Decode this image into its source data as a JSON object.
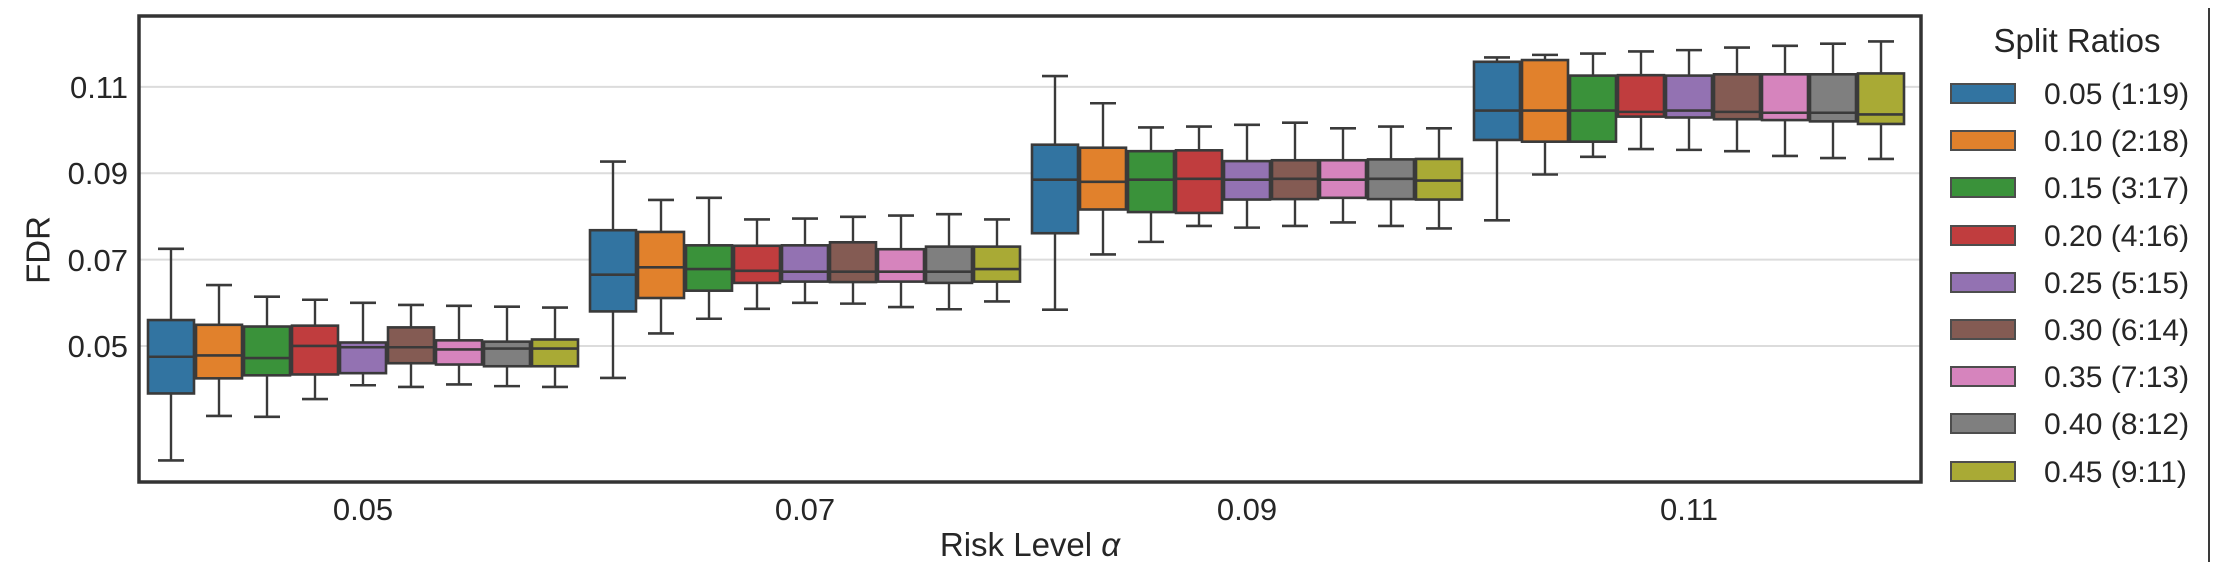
{
  "figure": {
    "background": "#ffffff",
    "border_color": "#333333",
    "grid_color": "#dcdcdc",
    "line_color": "#3a3a3a",
    "right_divider_line": true
  },
  "axes": {
    "xlabel_prefix": "Risk Level ",
    "xlabel_symbol": "α",
    "ylabel": "FDR",
    "x_tick_labels": [
      "0.05",
      "0.07",
      "0.09",
      "0.11"
    ],
    "y_tick_labels": [
      "0.05",
      "0.07",
      "0.09",
      "0.11"
    ]
  },
  "legend": {
    "title": "Split Ratios",
    "entries": [
      {
        "label": "0.05 (1:19)",
        "color": "#3274a1"
      },
      {
        "label": "0.10 (2:18)",
        "color": "#e1812c"
      },
      {
        "label": "0.15 (3:17)",
        "color": "#3a923a"
      },
      {
        "label": "0.20 (4:16)",
        "color": "#c03d3e"
      },
      {
        "label": "0.25 (5:15)",
        "color": "#9372b2"
      },
      {
        "label": "0.30 (6:14)",
        "color": "#845b53"
      },
      {
        "label": "0.35 (7:13)",
        "color": "#d684bd"
      },
      {
        "label": "0.40 (8:12)",
        "color": "#7f7f7f"
      },
      {
        "label": "0.45 (9:11)",
        "color": "#a9aa35"
      }
    ]
  },
  "chart_data": {
    "type": "grouped_boxplot",
    "title": "",
    "xlabel": "Risk Level α",
    "ylabel": "FDR",
    "categories": [
      "0.05",
      "0.07",
      "0.09",
      "0.11"
    ],
    "category_values": [
      0.05,
      0.07,
      0.09,
      0.11
    ],
    "y_ticks": [
      0.05,
      0.07,
      0.09,
      0.11
    ],
    "ylim": [
      0.0185,
      0.1264
    ],
    "grid": "horizontal-only",
    "legend_position": "right-outside",
    "legend_title": "Split Ratios",
    "series": [
      {
        "name": "0.05 (1:19)",
        "color": "#3274a1",
        "boxes": [
          {
            "whislo": 0.0235,
            "q1": 0.039,
            "med": 0.0475,
            "q3": 0.056,
            "whishi": 0.0725
          },
          {
            "whislo": 0.0426,
            "q1": 0.058,
            "med": 0.0665,
            "q3": 0.0768,
            "whishi": 0.0927
          },
          {
            "whislo": 0.0584,
            "q1": 0.0761,
            "med": 0.0885,
            "q3": 0.0966,
            "whishi": 0.1125
          },
          {
            "whislo": 0.0791,
            "q1": 0.0977,
            "med": 0.1045,
            "q3": 0.1158,
            "whishi": 0.1168
          }
        ]
      },
      {
        "name": "0.10 (2:18)",
        "color": "#e1812c",
        "boxes": [
          {
            "whislo": 0.0338,
            "q1": 0.0425,
            "med": 0.0478,
            "q3": 0.0549,
            "whishi": 0.0641
          },
          {
            "whislo": 0.0529,
            "q1": 0.0611,
            "med": 0.0682,
            "q3": 0.0764,
            "whishi": 0.0838
          },
          {
            "whislo": 0.0712,
            "q1": 0.0816,
            "med": 0.088,
            "q3": 0.0959,
            "whishi": 0.1062
          },
          {
            "whislo": 0.0897,
            "q1": 0.0973,
            "med": 0.1045,
            "q3": 0.1162,
            "whishi": 0.1174
          }
        ]
      },
      {
        "name": "0.15 (3:17)",
        "color": "#3a923a",
        "boxes": [
          {
            "whislo": 0.0336,
            "q1": 0.0432,
            "med": 0.0472,
            "q3": 0.0545,
            "whishi": 0.0614
          },
          {
            "whislo": 0.0563,
            "q1": 0.0628,
            "med": 0.0678,
            "q3": 0.0733,
            "whishi": 0.0843
          },
          {
            "whislo": 0.0741,
            "q1": 0.081,
            "med": 0.0885,
            "q3": 0.0951,
            "whishi": 0.1006
          },
          {
            "whislo": 0.0938,
            "q1": 0.0973,
            "med": 0.1045,
            "q3": 0.1126,
            "whishi": 0.1177
          }
        ]
      },
      {
        "name": "0.20 (4:16)",
        "color": "#c03d3e",
        "boxes": [
          {
            "whislo": 0.0377,
            "q1": 0.0434,
            "med": 0.05,
            "q3": 0.0547,
            "whishi": 0.0607
          },
          {
            "whislo": 0.0586,
            "q1": 0.0646,
            "med": 0.0674,
            "q3": 0.0732,
            "whishi": 0.0793
          },
          {
            "whislo": 0.0778,
            "q1": 0.0808,
            "med": 0.0887,
            "q3": 0.0953,
            "whishi": 0.1008
          },
          {
            "whislo": 0.0956,
            "q1": 0.1031,
            "med": 0.1042,
            "q3": 0.1127,
            "whishi": 0.1182
          }
        ]
      },
      {
        "name": "0.25 (5:15)",
        "color": "#9372b2",
        "boxes": [
          {
            "whislo": 0.0409,
            "q1": 0.0437,
            "med": 0.0497,
            "q3": 0.0508,
            "whishi": 0.06
          },
          {
            "whislo": 0.06,
            "q1": 0.0649,
            "med": 0.0672,
            "q3": 0.0733,
            "whishi": 0.0795
          },
          {
            "whislo": 0.0774,
            "q1": 0.0839,
            "med": 0.0885,
            "q3": 0.0928,
            "whishi": 0.1012
          },
          {
            "whislo": 0.0954,
            "q1": 0.1029,
            "med": 0.1045,
            "q3": 0.1126,
            "whishi": 0.1185
          }
        ]
      },
      {
        "name": "0.30 (6:14)",
        "color": "#845b53",
        "boxes": [
          {
            "whislo": 0.0405,
            "q1": 0.046,
            "med": 0.0497,
            "q3": 0.0543,
            "whishi": 0.0595
          },
          {
            "whislo": 0.0598,
            "q1": 0.0648,
            "med": 0.0672,
            "q3": 0.074,
            "whishi": 0.0799
          },
          {
            "whislo": 0.0778,
            "q1": 0.084,
            "med": 0.0887,
            "q3": 0.093,
            "whishi": 0.1017
          },
          {
            "whislo": 0.0951,
            "q1": 0.1025,
            "med": 0.1042,
            "q3": 0.1129,
            "whishi": 0.1191
          }
        ]
      },
      {
        "name": "0.35 (7:13)",
        "color": "#d684bd",
        "boxes": [
          {
            "whislo": 0.0411,
            "q1": 0.0457,
            "med": 0.0492,
            "q3": 0.0513,
            "whishi": 0.0593
          },
          {
            "whislo": 0.059,
            "q1": 0.0649,
            "med": 0.0672,
            "q3": 0.0724,
            "whishi": 0.0802
          },
          {
            "whislo": 0.0786,
            "q1": 0.0843,
            "med": 0.0885,
            "q3": 0.093,
            "whishi": 0.1004
          },
          {
            "whislo": 0.094,
            "q1": 0.1023,
            "med": 0.104,
            "q3": 0.1129,
            "whishi": 0.1195
          }
        ]
      },
      {
        "name": "0.40 (8:12)",
        "color": "#7f7f7f",
        "boxes": [
          {
            "whislo": 0.0407,
            "q1": 0.0453,
            "med": 0.0494,
            "q3": 0.051,
            "whishi": 0.0591
          },
          {
            "whislo": 0.0585,
            "q1": 0.0646,
            "med": 0.0672,
            "q3": 0.073,
            "whishi": 0.0805
          },
          {
            "whislo": 0.0778,
            "q1": 0.084,
            "med": 0.0887,
            "q3": 0.0932,
            "whishi": 0.1008
          },
          {
            "whislo": 0.0935,
            "q1": 0.102,
            "med": 0.104,
            "q3": 0.1129,
            "whishi": 0.12
          }
        ]
      },
      {
        "name": "0.45 (9:11)",
        "color": "#a9aa35",
        "boxes": [
          {
            "whislo": 0.0405,
            "q1": 0.0453,
            "med": 0.0494,
            "q3": 0.0515,
            "whishi": 0.0589
          },
          {
            "whislo": 0.0603,
            "q1": 0.0649,
            "med": 0.0678,
            "q3": 0.073,
            "whishi": 0.0793
          },
          {
            "whislo": 0.0772,
            "q1": 0.0839,
            "med": 0.0883,
            "q3": 0.0933,
            "whishi": 0.1004
          },
          {
            "whislo": 0.0933,
            "q1": 0.1014,
            "med": 0.1036,
            "q3": 0.1131,
            "whishi": 0.1205
          }
        ]
      }
    ]
  }
}
